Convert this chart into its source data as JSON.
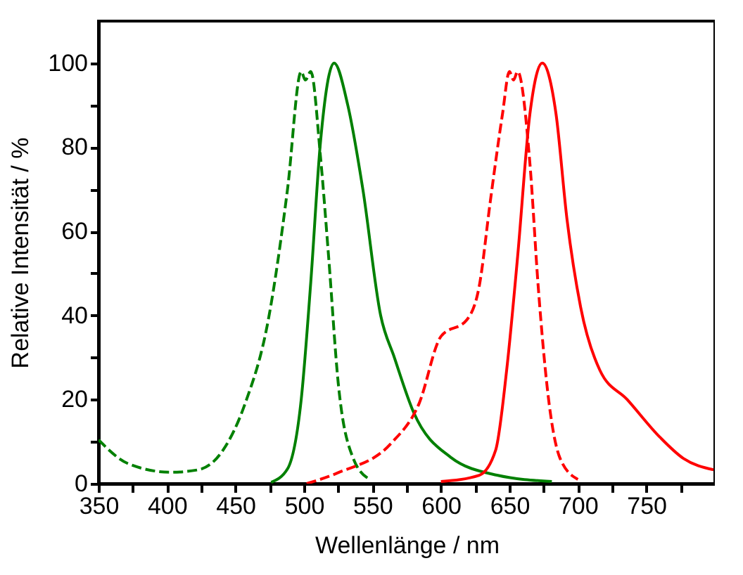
{
  "chart_data": {
    "type": "line",
    "xlabel": "Wellenlänge / nm",
    "ylabel": "Relative Intensität / %",
    "xlim": [
      350,
      800
    ],
    "ylim": [
      0,
      110
    ],
    "xticks": [
      350,
      {
        "value": 375,
        "label": null
      },
      400,
      {
        "value": 425,
        "label": null
      },
      450,
      {
        "value": 475,
        "label": null
      },
      500,
      {
        "value": 525,
        "label": null
      },
      550,
      {
        "value": 575,
        "label": null
      },
      600,
      {
        "value": 625,
        "label": null
      },
      650,
      {
        "value": 675,
        "label": null
      },
      700,
      {
        "value": 725,
        "label": null
      },
      750,
      {
        "value": 775,
        "label": null
      }
    ],
    "yticks": [
      0,
      {
        "value": 10,
        "label": null
      },
      20,
      {
        "value": 30,
        "label": null
      },
      40,
      {
        "value": 50,
        "label": null
      },
      60,
      {
        "value": 70,
        "label": null
      },
      80,
      {
        "value": 90,
        "label": null
      },
      100
    ],
    "grid": false,
    "legend": false,
    "marker": "none",
    "series": [
      {
        "color": "#008000",
        "line_style": "dashed",
        "x": [
          350,
          372,
          403,
          423,
          441,
          457,
          474,
          488,
          498,
          501,
          505,
          512,
          518,
          525,
          536,
          548
        ],
        "values": [
          10.4,
          4.7,
          2.7,
          3.3,
          8,
          19,
          39,
          70,
          98,
          96,
          98,
          78,
          54,
          24,
          6,
          1
        ]
      },
      {
        "color": "#008000",
        "line_style": "solid",
        "x": [
          476,
          488,
          498,
          505,
          512,
          522,
          532,
          543,
          556,
          566,
          580,
          607,
          641,
          681
        ],
        "values": [
          0.3,
          3.5,
          20,
          48,
          81,
          100,
          90,
          70,
          40,
          30,
          17,
          6.3,
          2,
          0.5
        ]
      },
      {
        "color": "#ff0000",
        "line_style": "dashed",
        "x": [
          502,
          525,
          564,
          584,
          600,
          619,
          628,
          636,
          645,
          650,
          653,
          656,
          665,
          671,
          679,
          687,
          700
        ],
        "values": [
          0,
          2.6,
          9.7,
          19,
          35,
          39,
          47,
          67,
          88,
          98,
          96,
          98,
          76,
          47,
          19,
          6,
          1
        ]
      },
      {
        "color": "#ff0000",
        "line_style": "solid",
        "x": [
          600,
          628,
          640,
          648,
          656,
          665,
          674,
          684,
          692,
          702,
          716,
          736,
          760,
          777,
          799
        ],
        "values": [
          0.5,
          2,
          8,
          27,
          54,
          88,
          100,
          88,
          63,
          42,
          27,
          20,
          11,
          6,
          3.3
        ]
      }
    ]
  }
}
